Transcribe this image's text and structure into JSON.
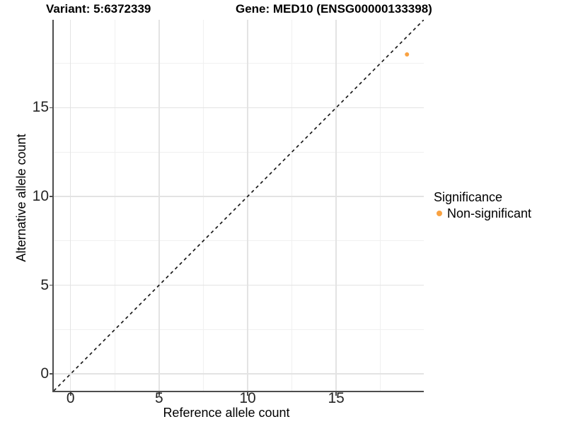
{
  "titles": {
    "variant": "Variant: 5:6372339",
    "gene": "Gene: MED10 (ENSG00000133398)"
  },
  "chart_data": {
    "type": "scatter",
    "xlabel": "Reference allele count",
    "ylabel": "Alternative allele count",
    "xlim": [
      -0.95,
      19.95
    ],
    "ylim": [
      -0.95,
      19.95
    ],
    "x_ticks": [
      0,
      5,
      10,
      15
    ],
    "y_ticks": [
      0,
      5,
      10,
      15
    ],
    "x_minor_ticks": [
      2.5,
      7.5,
      12.5,
      17.5
    ],
    "y_minor_ticks": [
      2.5,
      7.5,
      12.5,
      17.5
    ],
    "grid": "major and minor, light gray on white",
    "points": [
      {
        "x": 19,
        "y": 18,
        "series": "Non-significant"
      }
    ],
    "abline": {
      "slope": 1,
      "intercept": 0,
      "style": "dashed"
    },
    "legend": {
      "position": "right",
      "title": "Significance",
      "items": [
        {
          "label": "Non-significant",
          "color": "#F9A242"
        }
      ]
    },
    "colors": {
      "point": "#F9A242",
      "abline": "#1a1a1a",
      "grid_major": "#e3e3e3",
      "grid_minor": "#f0f0f0",
      "axis_line": "#4d4d4d",
      "tick_text": "#262626"
    }
  }
}
